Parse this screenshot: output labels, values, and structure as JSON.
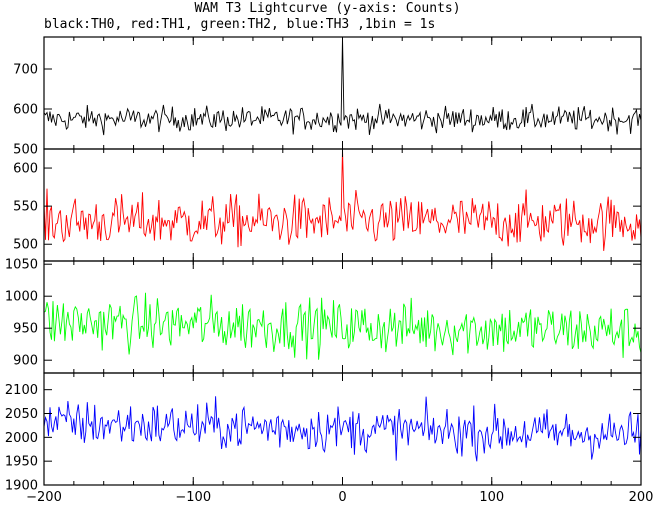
{
  "title": "WAM T3 Lightcurve (y-axis: Counts)",
  "subtitle": "black:TH0, red:TH1, green:TH2, blue:TH3 ,1bin = 1s",
  "chart_data": {
    "type": "line",
    "x_range": [
      -200,
      200
    ],
    "x_ticks": [
      -200,
      -100,
      0,
      100,
      200
    ],
    "panels": [
      {
        "series_label": "TH0",
        "color": "#000000",
        "ylim": [
          500,
          780
        ],
        "y_ticks": [
          500,
          600,
          700
        ],
        "baseline": 575,
        "noise": 22,
        "spike": {
          "x": 0,
          "y": 780
        }
      },
      {
        "series_label": "TH1",
        "color": "#ff0000",
        "ylim": [
          478,
          625
        ],
        "y_ticks": [
          500,
          550,
          600
        ],
        "baseline": 530,
        "noise": 24,
        "spike": {
          "x": 0,
          "y": 625
        }
      },
      {
        "series_label": "TH2",
        "color": "#00ff00",
        "ylim": [
          880,
          1055
        ],
        "y_ticks": [
          900,
          950,
          1000,
          1050
        ],
        "baseline": 960,
        "noise": 30,
        "trend": -15
      },
      {
        "series_label": "TH3",
        "color": "#0000ff",
        "ylim": [
          1900,
          2135
        ],
        "y_ticks": [
          1900,
          1950,
          2000,
          2050,
          2100
        ],
        "baseline": 2030,
        "noise": 35,
        "trend": -25
      }
    ]
  }
}
